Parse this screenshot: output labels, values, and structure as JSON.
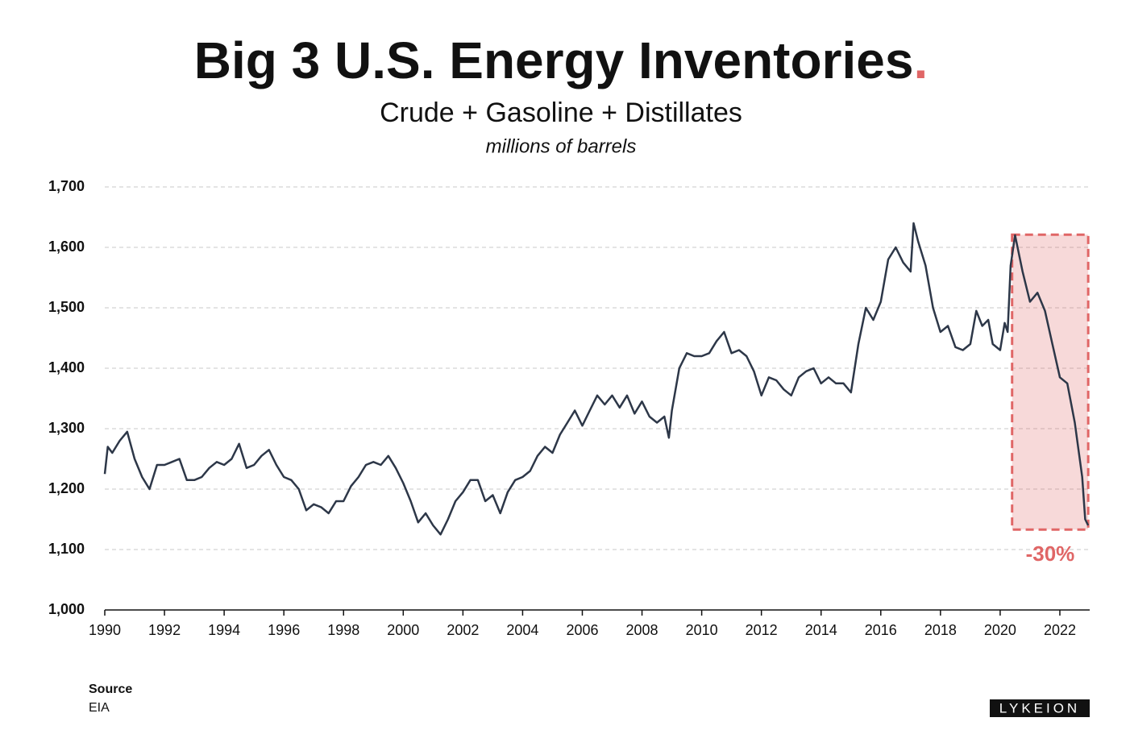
{
  "chart_data": {
    "type": "line",
    "title": "Big 3 U.S. Energy Inventories",
    "title_mark": ".",
    "subtitle": "Crude + Gasoline + Distillates",
    "ylabel": "millions of barrels",
    "xlim": [
      1990,
      2023
    ],
    "xticks": [
      1990,
      1992,
      1994,
      1996,
      1998,
      2000,
      2002,
      2004,
      2006,
      2008,
      2010,
      2012,
      2014,
      2016,
      2018,
      2020,
      2022
    ],
    "ylim": [
      1000,
      1700
    ],
    "yticks": [
      {
        "value": 1000,
        "label": "1,000"
      },
      {
        "value": 1100,
        "label": "1,100"
      },
      {
        "value": 1200,
        "label": "1,200"
      },
      {
        "value": 1300,
        "label": "1,300"
      },
      {
        "value": 1400,
        "label": "1,400"
      },
      {
        "value": 1500,
        "label": "1,500"
      },
      {
        "value": 1600,
        "label": "1,600"
      },
      {
        "value": 1700,
        "label": "1,700"
      }
    ],
    "grid": true,
    "series": [
      {
        "color": "#2d3748",
        "x": [
          1990,
          1990.1,
          1990.25,
          1990.5,
          1990.75,
          1991,
          1991.25,
          1991.5,
          1991.75,
          1992,
          1992.25,
          1992.5,
          1992.75,
          1993,
          1993.25,
          1993.5,
          1993.75,
          1994,
          1994.25,
          1994.5,
          1994.75,
          1995,
          1995.25,
          1995.5,
          1995.75,
          1996,
          1996.25,
          1996.5,
          1996.75,
          1997,
          1997.25,
          1997.5,
          1997.75,
          1998,
          1998.25,
          1998.5,
          1998.75,
          1999,
          1999.25,
          1999.5,
          1999.75,
          2000,
          2000.25,
          2000.5,
          2000.75,
          2001,
          2001.25,
          2001.5,
          2001.75,
          2002,
          2002.25,
          2002.5,
          2002.75,
          2003,
          2003.25,
          2003.5,
          2003.75,
          2004,
          2004.25,
          2004.5,
          2004.75,
          2005,
          2005.25,
          2005.5,
          2005.75,
          2006,
          2006.25,
          2006.5,
          2006.75,
          2007,
          2007.25,
          2007.5,
          2007.75,
          2008,
          2008.25,
          2008.5,
          2008.75,
          2008.9,
          2009,
          2009.25,
          2009.5,
          2009.75,
          2010,
          2010.25,
          2010.5,
          2010.75,
          2011,
          2011.25,
          2011.5,
          2011.75,
          2012,
          2012.25,
          2012.5,
          2012.75,
          2013,
          2013.25,
          2013.5,
          2013.75,
          2014,
          2014.25,
          2014.5,
          2014.75,
          2015,
          2015.25,
          2015.5,
          2015.75,
          2016,
          2016.25,
          2016.5,
          2016.75,
          2017,
          2017.1,
          2017.25,
          2017.5,
          2017.75,
          2018,
          2018.25,
          2018.5,
          2018.75,
          2019,
          2019.2,
          2019.4,
          2019.6,
          2019.75,
          2020,
          2020.15,
          2020.25,
          2020.35,
          2020.5,
          2020.75,
          2021,
          2021.25,
          2021.5,
          2021.75,
          2022,
          2022.25,
          2022.5,
          2022.75,
          2022.85,
          2022.95
        ],
        "values": [
          1225,
          1270,
          1260,
          1280,
          1295,
          1250,
          1220,
          1200,
          1240,
          1240,
          1245,
          1250,
          1215,
          1215,
          1220,
          1235,
          1245,
          1240,
          1250,
          1275,
          1235,
          1240,
          1255,
          1265,
          1240,
          1220,
          1215,
          1200,
          1165,
          1175,
          1170,
          1160,
          1180,
          1180,
          1205,
          1220,
          1240,
          1245,
          1240,
          1255,
          1235,
          1210,
          1180,
          1145,
          1160,
          1140,
          1125,
          1150,
          1180,
          1195,
          1215,
          1215,
          1180,
          1190,
          1160,
          1195,
          1215,
          1220,
          1230,
          1255,
          1270,
          1260,
          1290,
          1310,
          1330,
          1305,
          1330,
          1355,
          1340,
          1355,
          1335,
          1355,
          1325,
          1345,
          1320,
          1310,
          1320,
          1285,
          1330,
          1400,
          1425,
          1420,
          1420,
          1425,
          1445,
          1460,
          1425,
          1430,
          1420,
          1395,
          1355,
          1385,
          1380,
          1365,
          1355,
          1385,
          1395,
          1400,
          1375,
          1385,
          1375,
          1375,
          1360,
          1440,
          1500,
          1480,
          1510,
          1580,
          1600,
          1575,
          1560,
          1640,
          1610,
          1570,
          1500,
          1460,
          1470,
          1435,
          1430,
          1440,
          1495,
          1470,
          1480,
          1440,
          1430,
          1475,
          1460,
          1570,
          1620,
          1560,
          1510,
          1525,
          1495,
          1440,
          1385,
          1375,
          1310,
          1220,
          1150,
          1140
        ]
      }
    ],
    "annotations": [
      {
        "text": "-30%",
        "color": "#e06666",
        "x_range": [
          2020.4,
          2022.95
        ],
        "y_range": [
          1133,
          1621
        ]
      }
    ],
    "source_label": "Source",
    "source": "EIA",
    "logo": "LYKEION"
  }
}
